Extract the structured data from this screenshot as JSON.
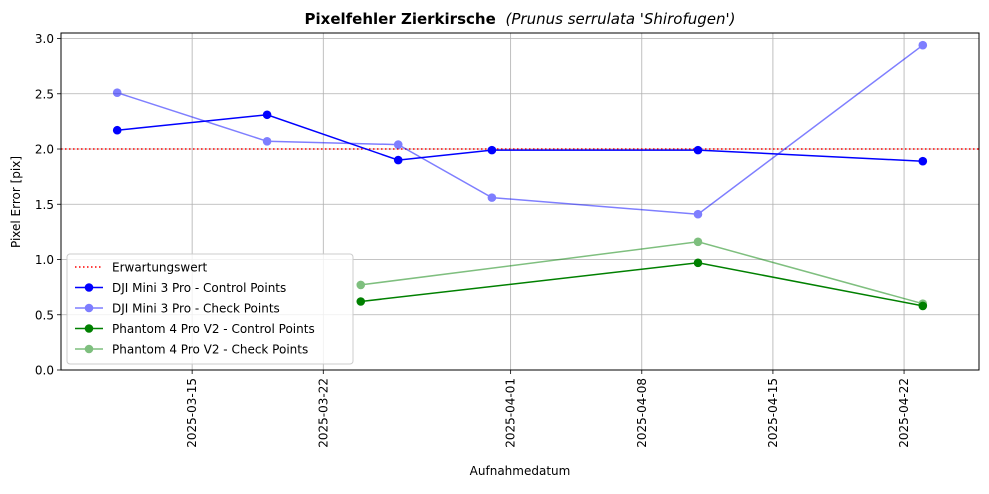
{
  "chart_data": {
    "type": "line",
    "title_bold": "Pixelfehler Zierkirsche",
    "title_italic": "(Prunus serrulata 'Shirofugen')",
    "xlabel": "Aufnahmedatum",
    "ylabel": "Pixel Error [pix]",
    "xlim": [
      "2025-03-08",
      "2025-04-26"
    ],
    "ylim": [
      0,
      3.05
    ],
    "xticks": [
      "2025-03-15",
      "2025-03-22",
      "2025-04-01",
      "2025-04-08",
      "2025-04-15",
      "2025-04-22"
    ],
    "yticks": [
      "0.0",
      "0.5",
      "1.0",
      "1.5",
      "2.0",
      "2.5",
      "3.0"
    ],
    "grid": true,
    "legend_position": "lower-left",
    "reference_line": {
      "name": "Erwartungswert",
      "value": 2.0,
      "color": "#ff0000",
      "style": "dotted"
    },
    "series": [
      {
        "name": "DJI Mini 3 Pro - Control Points",
        "color": "#0000ff",
        "opacity": 1.0,
        "points": [
          {
            "date": "2025-03-11",
            "value": 2.17
          },
          {
            "date": "2025-03-19",
            "value": 2.31
          },
          {
            "date": "2025-03-26",
            "value": 1.9
          },
          {
            "date": "2025-03-31",
            "value": 1.99
          },
          {
            "date": "2025-04-11",
            "value": 1.99
          },
          {
            "date": "2025-04-23",
            "value": 1.89
          }
        ]
      },
      {
        "name": "DJI Mini 3 Pro - Check Points",
        "color": "#0000ff",
        "opacity": 0.5,
        "points": [
          {
            "date": "2025-03-11",
            "value": 2.51
          },
          {
            "date": "2025-03-19",
            "value": 2.07
          },
          {
            "date": "2025-03-26",
            "value": 2.04
          },
          {
            "date": "2025-03-31",
            "value": 1.56
          },
          {
            "date": "2025-04-11",
            "value": 1.41
          },
          {
            "date": "2025-04-23",
            "value": 2.94
          }
        ]
      },
      {
        "name": "Phantom 4 Pro V2 - Control Points",
        "color": "#008000",
        "opacity": 1.0,
        "points": [
          {
            "date": "2025-03-24",
            "value": 0.62
          },
          {
            "date": "2025-04-11",
            "value": 0.97
          },
          {
            "date": "2025-04-23",
            "value": 0.58
          }
        ]
      },
      {
        "name": "Phantom 4 Pro V2 - Check Points",
        "color": "#008000",
        "opacity": 0.5,
        "points": [
          {
            "date": "2025-03-24",
            "value": 0.77
          },
          {
            "date": "2025-04-11",
            "value": 1.16
          },
          {
            "date": "2025-04-23",
            "value": 0.6
          }
        ]
      }
    ]
  }
}
